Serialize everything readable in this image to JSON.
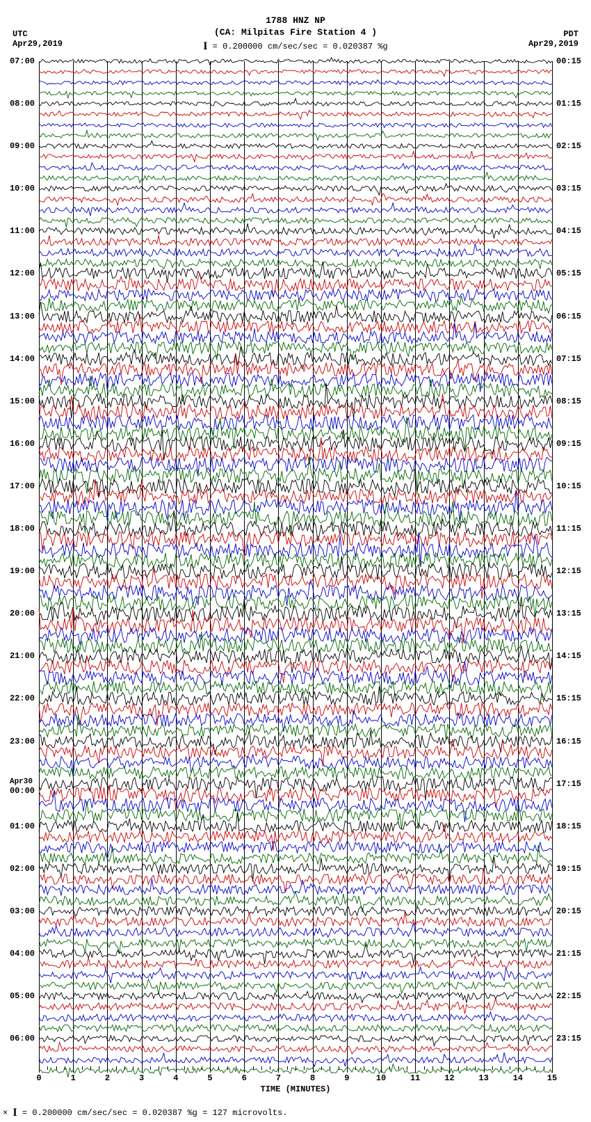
{
  "type": "seismogram",
  "title_line1": "1788 HNZ NP",
  "title_line2": "(CA: Milpitas Fire Station 4 )",
  "scale_text": " = 0.200000 cm/sec/sec = 0.020387 %g",
  "scale_bar_glyph": "I",
  "left_tz": "UTC",
  "left_date": "Apr29,2019",
  "right_tz": "PDT",
  "right_date": "Apr29,2019",
  "x_axis_label": "TIME (MINUTES)",
  "x_ticks": [
    "0",
    "1",
    "2",
    "3",
    "4",
    "5",
    "6",
    "7",
    "8",
    "9",
    "10",
    "11",
    "12",
    "13",
    "14",
    "15"
  ],
  "x_minor_per_major": 4,
  "trace_colors": [
    "#000000",
    "#cc0000",
    "#0000cc",
    "#006600"
  ],
  "background_color": "#ffffff",
  "grid_color": "#000000",
  "rows_per_hour": 4,
  "hours_utc": [
    "07:00",
    "08:00",
    "09:00",
    "10:00",
    "11:00",
    "12:00",
    "13:00",
    "14:00",
    "15:00",
    "16:00",
    "17:00",
    "18:00",
    "19:00",
    "20:00",
    "21:00",
    "22:00",
    "23:00",
    "00:00",
    "01:00",
    "02:00",
    "03:00",
    "04:00",
    "05:00",
    "06:00"
  ],
  "utc_date_break_index": 17,
  "utc_date_break_label": "Apr30",
  "hours_local": [
    "00:15",
    "01:15",
    "02:15",
    "03:15",
    "04:15",
    "05:15",
    "06:15",
    "07:15",
    "08:15",
    "09:15",
    "10:15",
    "11:15",
    "12:15",
    "13:15",
    "14:15",
    "15:15",
    "16:15",
    "17:15",
    "18:15",
    "19:15",
    "20:15",
    "21:15",
    "22:15",
    "23:15"
  ],
  "total_traces": 96,
  "amplitude_profile": [
    0.25,
    0.25,
    0.25,
    0.25,
    0.28,
    0.28,
    0.28,
    0.28,
    0.3,
    0.3,
    0.32,
    0.32,
    0.35,
    0.35,
    0.38,
    0.38,
    0.45,
    0.48,
    0.5,
    0.5,
    0.75,
    0.8,
    0.78,
    0.75,
    0.8,
    0.82,
    0.8,
    0.78,
    0.85,
    0.88,
    0.9,
    0.9,
    0.95,
    0.98,
    1.0,
    1.0,
    1.0,
    1.0,
    1.0,
    1.0,
    1.0,
    1.0,
    1.0,
    1.0,
    1.0,
    1.0,
    1.0,
    1.0,
    1.0,
    1.0,
    1.0,
    1.0,
    1.0,
    1.0,
    1.0,
    0.98,
    0.95,
    0.95,
    0.92,
    0.9,
    0.9,
    0.88,
    0.85,
    0.85,
    0.85,
    0.85,
    0.82,
    0.8,
    0.9,
    0.95,
    0.9,
    0.85,
    0.8,
    0.78,
    0.75,
    0.72,
    0.7,
    0.68,
    0.65,
    0.62,
    0.6,
    0.58,
    0.58,
    0.55,
    0.55,
    0.52,
    0.5,
    0.5,
    0.48,
    0.48,
    0.45,
    0.45,
    0.42,
    0.4,
    0.4,
    0.38
  ],
  "footer_text": " = 0.200000 cm/sec/sec = 0.020387 %g =   127 microvolts.",
  "footer_prefix": "×",
  "font_family": "Courier New, monospace",
  "title_fontsize": 13,
  "label_fontsize": 12
}
